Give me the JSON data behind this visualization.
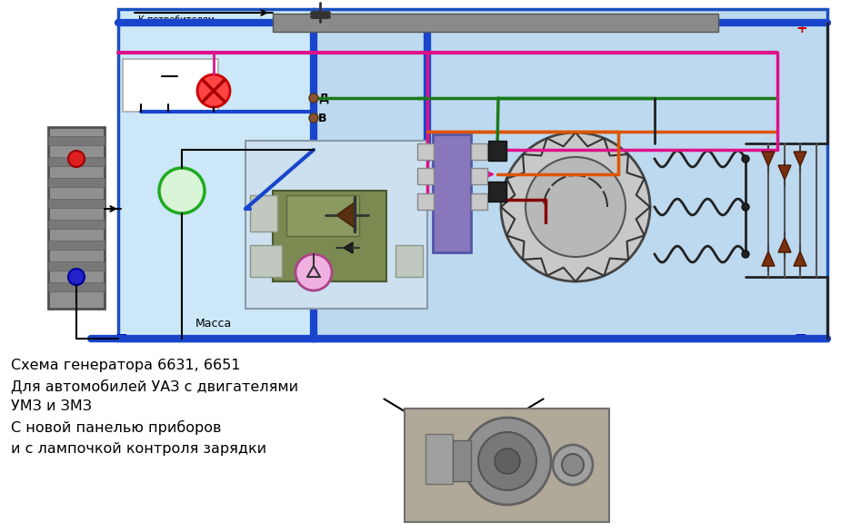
{
  "bg_color": "#ffffff",
  "caption_lines": [
    "Схема генератора 6631, 6651",
    "Для автомобилей УАЗ с двигателями",
    "УМЗ и ЗМЗ",
    "С новой панелью приборов",
    "и с лампочкой контроля зарядки"
  ],
  "blue_wire": "#1845cc",
  "green_wire": "#1a7a1a",
  "pink_wire": "#e0108a",
  "orange_wire": "#dd5500",
  "dark_red_wire": "#880000",
  "reg_bg": "#7a8850",
  "plus_color": "#cc0000",
  "minus_color": "#0000bb",
  "gray_bus": "#888888",
  "light_blue_main": "#bdd9ef",
  "light_blue_left": "#cce8f8"
}
